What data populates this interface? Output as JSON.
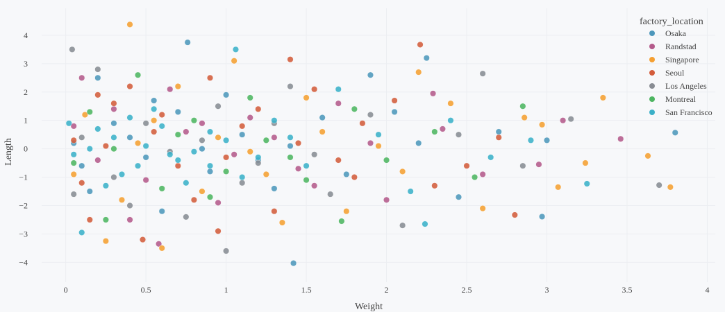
{
  "chart_data": {
    "type": "scatter",
    "xlabel": "Weight",
    "ylabel": "Length",
    "xlim": [
      -0.15,
      4.05
    ],
    "ylim": [
      -4.7,
      4.95
    ],
    "xticks": [
      0,
      0.5,
      1,
      1.5,
      2,
      2.5,
      3,
      3.5,
      4
    ],
    "xtick_labels": [
      "0",
      "0.5",
      "1",
      "1.5",
      "2",
      "2.5",
      "3",
      "3.5",
      "4"
    ],
    "yticks": [
      -4,
      -3,
      -2,
      -1,
      0,
      1,
      2,
      3,
      4
    ],
    "ytick_labels": [
      "−4",
      "−3",
      "−2",
      "−1",
      "0",
      "1",
      "2",
      "3",
      "4"
    ],
    "grid": true,
    "legend_title": "factory_location",
    "legend_placement": "top-right",
    "series": [
      {
        "name": "Osaka",
        "color": "#4d97bb",
        "points": [
          [
            3.8,
            0.57
          ],
          [
            2.97,
            -2.39
          ],
          [
            1.42,
            -4.03
          ],
          [
            0.76,
            3.75
          ],
          [
            2.25,
            3.2
          ],
          [
            3.0,
            0.3
          ],
          [
            2.7,
            0.6
          ],
          [
            2.45,
            -1.7
          ],
          [
            2.2,
            0.2
          ],
          [
            1.9,
            2.6
          ],
          [
            1.6,
            1.1
          ],
          [
            1.3,
            -1.4
          ],
          [
            1.1,
            0.5
          ],
          [
            0.9,
            -0.8
          ],
          [
            0.7,
            1.3
          ],
          [
            0.5,
            -0.3
          ],
          [
            0.3,
            0.9
          ],
          [
            0.15,
            -1.5
          ],
          [
            0.05,
            0.2
          ],
          [
            0.2,
            2.5
          ],
          [
            0.6,
            -2.2
          ],
          [
            1.0,
            1.9
          ],
          [
            1.4,
            0.1
          ],
          [
            1.75,
            -0.9
          ],
          [
            2.05,
            1.3
          ],
          [
            0.4,
            0.4
          ],
          [
            0.85,
            0.0
          ],
          [
            1.2,
            -0.4
          ],
          [
            0.1,
            -0.6
          ],
          [
            0.55,
            1.7
          ]
        ]
      },
      {
        "name": "Randstad",
        "color": "#b45a8b",
        "points": [
          [
            3.46,
            0.35
          ],
          [
            0.58,
            -3.35
          ],
          [
            2.29,
            1.95
          ],
          [
            3.1,
            1.0
          ],
          [
            2.95,
            -0.55
          ],
          [
            2.6,
            -0.9
          ],
          [
            2.35,
            0.7
          ],
          [
            2.0,
            -1.8
          ],
          [
            1.7,
            1.6
          ],
          [
            1.45,
            -0.7
          ],
          [
            1.15,
            1.1
          ],
          [
            0.95,
            -1.9
          ],
          [
            0.75,
            0.6
          ],
          [
            0.5,
            -1.1
          ],
          [
            0.3,
            1.4
          ],
          [
            0.1,
            2.5
          ],
          [
            0.2,
            -0.4
          ],
          [
            0.65,
            2.1
          ],
          [
            1.05,
            -0.2
          ],
          [
            1.3,
            0.4
          ],
          [
            0.4,
            -2.5
          ],
          [
            0.85,
            0.9
          ],
          [
            1.55,
            -1.3
          ],
          [
            0.05,
            0.8
          ],
          [
            1.9,
            0.2
          ]
        ]
      },
      {
        "name": "Singapore",
        "color": "#f59f31",
        "points": [
          [
            0.4,
            4.38
          ],
          [
            3.63,
            -0.25
          ],
          [
            3.77,
            -1.35
          ],
          [
            3.35,
            1.8
          ],
          [
            3.24,
            -0.5
          ],
          [
            3.07,
            -1.35
          ],
          [
            2.97,
            0.85
          ],
          [
            2.86,
            1.1
          ],
          [
            2.6,
            -2.1
          ],
          [
            2.4,
            1.6
          ],
          [
            2.2,
            2.7
          ],
          [
            1.95,
            0.1
          ],
          [
            1.75,
            -2.2
          ],
          [
            1.5,
            1.8
          ],
          [
            1.25,
            -0.9
          ],
          [
            1.05,
            3.1
          ],
          [
            0.85,
            -1.5
          ],
          [
            0.6,
            -3.5
          ],
          [
            0.45,
            0.2
          ],
          [
            0.25,
            -3.25
          ],
          [
            0.12,
            1.2
          ],
          [
            0.35,
            -1.8
          ],
          [
            0.7,
            2.2
          ],
          [
            0.95,
            0.4
          ],
          [
            1.35,
            -2.6
          ],
          [
            1.6,
            0.6
          ],
          [
            0.05,
            -0.9
          ],
          [
            0.55,
            1.0
          ],
          [
            1.15,
            -0.1
          ],
          [
            2.1,
            -0.8
          ]
        ]
      },
      {
        "name": "Seoul",
        "color": "#d35c3b",
        "points": [
          [
            2.21,
            3.67
          ],
          [
            2.8,
            -2.33
          ],
          [
            1.4,
            3.15
          ],
          [
            2.7,
            0.4
          ],
          [
            2.5,
            -0.6
          ],
          [
            2.3,
            -1.3
          ],
          [
            2.05,
            1.7
          ],
          [
            1.8,
            -1.0
          ],
          [
            1.55,
            2.1
          ],
          [
            1.3,
            -2.2
          ],
          [
            1.1,
            0.8
          ],
          [
            0.9,
            2.5
          ],
          [
            0.7,
            -0.6
          ],
          [
            0.48,
            -3.2
          ],
          [
            0.3,
            1.6
          ],
          [
            0.15,
            -2.5
          ],
          [
            0.05,
            0.3
          ],
          [
            0.25,
            0.1
          ],
          [
            0.6,
            1.2
          ],
          [
            0.8,
            -1.8
          ],
          [
            1.0,
            -0.3
          ],
          [
            1.2,
            1.4
          ],
          [
            1.45,
            0.2
          ],
          [
            1.7,
            -0.4
          ],
          [
            0.4,
            2.2
          ],
          [
            0.1,
            -1.2
          ],
          [
            0.95,
            -2.9
          ],
          [
            0.55,
            0.6
          ],
          [
            1.85,
            0.9
          ],
          [
            0.2,
            1.9
          ]
        ]
      },
      {
        "name": "Los Angeles",
        "color": "#888c93",
        "points": [
          [
            0.04,
            3.5
          ],
          [
            3.7,
            -1.28
          ],
          [
            1.0,
            -3.6
          ],
          [
            2.6,
            2.65
          ],
          [
            3.15,
            1.05
          ],
          [
            2.85,
            -0.6
          ],
          [
            2.45,
            0.5
          ],
          [
            2.1,
            -2.7
          ],
          [
            1.9,
            1.2
          ],
          [
            1.65,
            -1.6
          ],
          [
            1.4,
            2.2
          ],
          [
            1.2,
            -0.5
          ],
          [
            0.95,
            1.5
          ],
          [
            0.75,
            -2.4
          ],
          [
            0.5,
            0.9
          ],
          [
            0.3,
            -1.0
          ],
          [
            0.1,
            0.4
          ],
          [
            0.2,
            2.8
          ],
          [
            0.65,
            -0.1
          ],
          [
            0.85,
            0.3
          ],
          [
            1.1,
            -1.2
          ],
          [
            1.3,
            0.9
          ],
          [
            1.55,
            -0.2
          ],
          [
            0.4,
            -2.0
          ],
          [
            0.05,
            -1.6
          ]
        ]
      },
      {
        "name": "Montreal",
        "color": "#4db561",
        "points": [
          [
            2.85,
            1.5
          ],
          [
            1.72,
            -2.55
          ],
          [
            2.55,
            -1.0
          ],
          [
            2.3,
            0.6
          ],
          [
            2.0,
            -0.4
          ],
          [
            1.8,
            1.4
          ],
          [
            1.5,
            -1.1
          ],
          [
            1.25,
            0.3
          ],
          [
            1.0,
            -0.8
          ],
          [
            0.8,
            1.0
          ],
          [
            0.6,
            -1.4
          ],
          [
            0.45,
            2.6
          ],
          [
            0.3,
            0.0
          ],
          [
            0.15,
            1.3
          ],
          [
            0.05,
            -0.5
          ],
          [
            0.25,
            -2.5
          ],
          [
            0.7,
            0.5
          ],
          [
            1.15,
            1.8
          ],
          [
            1.4,
            -0.3
          ],
          [
            0.9,
            -1.7
          ]
        ]
      },
      {
        "name": "San Francisco",
        "color": "#3bb0c8",
        "points": [
          [
            1.06,
            3.5
          ],
          [
            2.24,
            -2.65
          ],
          [
            3.25,
            -1.23
          ],
          [
            2.9,
            0.3
          ],
          [
            2.65,
            -0.3
          ],
          [
            2.4,
            1.0
          ],
          [
            2.15,
            -1.5
          ],
          [
            1.95,
            0.5
          ],
          [
            1.7,
            2.1
          ],
          [
            1.5,
            -0.6
          ],
          [
            1.3,
            1.0
          ],
          [
            1.1,
            -1.0
          ],
          [
            0.9,
            0.6
          ],
          [
            0.7,
            -0.4
          ],
          [
            0.5,
            0.1
          ],
          [
            0.35,
            -0.9
          ],
          [
            0.2,
            0.7
          ],
          [
            0.05,
            -0.2
          ],
          [
            0.1,
            -2.95
          ],
          [
            0.15,
            0.0
          ],
          [
            0.3,
            0.4
          ],
          [
            0.45,
            -0.6
          ],
          [
            0.6,
            0.8
          ],
          [
            0.8,
            -0.1
          ],
          [
            1.0,
            0.3
          ],
          [
            1.2,
            -0.3
          ],
          [
            0.25,
            -1.3
          ],
          [
            0.55,
            1.4
          ],
          [
            0.75,
            -1.2
          ],
          [
            0.02,
            0.9
          ],
          [
            0.4,
            1.1
          ],
          [
            0.65,
            -0.2
          ],
          [
            0.9,
            -0.6
          ],
          [
            1.4,
            0.4
          ]
        ]
      }
    ]
  }
}
